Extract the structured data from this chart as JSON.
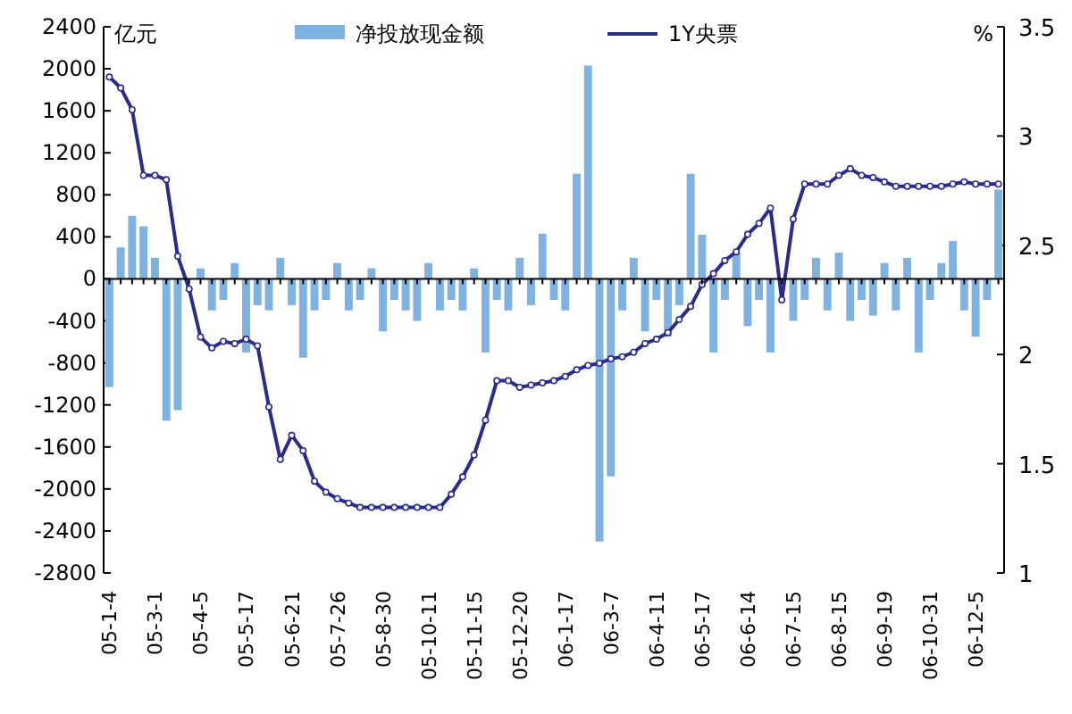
{
  "chart_data": {
    "type": "bar",
    "ylabel": "亿元",
    "y2label": "%",
    "categories": [
      "05-1-4",
      null,
      null,
      null,
      "05-3-1",
      null,
      null,
      null,
      "05-4-5",
      null,
      null,
      null,
      "05-5-17",
      null,
      null,
      null,
      "05-6-21",
      null,
      null,
      null,
      "05-7-26",
      null,
      null,
      null,
      "05-8-30",
      null,
      null,
      null,
      "05-10-11",
      null,
      null,
      null,
      "05-11-15",
      null,
      null,
      null,
      "05-12-20",
      null,
      null,
      null,
      "06-1-17",
      null,
      null,
      null,
      "06-3-7",
      null,
      null,
      null,
      "06-4-11",
      null,
      null,
      null,
      "06-5-17",
      null,
      null,
      null,
      "06-6-14",
      null,
      null,
      null,
      "06-7-15",
      null,
      null,
      null,
      "06-8-15",
      null,
      null,
      null,
      "06-9-19",
      null,
      null,
      null,
      "06-10-31",
      null,
      null,
      null,
      "06-12-5",
      null,
      null
    ],
    "series": [
      {
        "name": "净投放现金额",
        "color": "#7fb2e0",
        "values": [
          -1030,
          300,
          600,
          500,
          200,
          -1350,
          -1250,
          null,
          100,
          -300,
          -200,
          150,
          -700,
          -250,
          -300,
          200,
          -250,
          -750,
          -300,
          -200,
          150,
          -300,
          -200,
          100,
          -500,
          -200,
          -300,
          -400,
          150,
          -300,
          -200,
          -300,
          100,
          -700,
          -200,
          -300,
          200,
          -250,
          430,
          -200,
          -300,
          1000,
          2030,
          -2500,
          -1880,
          -300,
          200,
          -500,
          -200,
          -550,
          -250,
          1000,
          420,
          -700,
          -200,
          250,
          -450,
          -200,
          -700,
          null,
          -400,
          -200,
          200,
          -300,
          250,
          -400,
          -200,
          -350,
          150,
          -300,
          200,
          -700,
          -200,
          150,
          360,
          -300,
          -550,
          -200,
          850
        ]
      },
      {
        "name": "1Y央票",
        "type": "line",
        "axis": "y2",
        "color": "#2b2b8c",
        "marker": "circle",
        "values": [
          3.27,
          3.22,
          3.12,
          2.82,
          2.82,
          2.8,
          2.45,
          2.3,
          2.08,
          2.03,
          2.06,
          2.05,
          2.07,
          2.04,
          1.76,
          1.52,
          1.63,
          1.56,
          1.42,
          1.37,
          1.34,
          1.32,
          1.3,
          1.3,
          1.3,
          1.3,
          1.3,
          1.3,
          1.3,
          1.3,
          1.36,
          1.44,
          1.54,
          1.7,
          1.88,
          1.88,
          1.85,
          1.86,
          1.87,
          1.88,
          1.9,
          1.93,
          1.95,
          1.96,
          1.98,
          1.99,
          2.01,
          2.05,
          2.07,
          2.1,
          2.16,
          2.22,
          2.32,
          2.37,
          2.43,
          2.47,
          2.55,
          2.6,
          2.67,
          2.25,
          2.62,
          2.78,
          2.78,
          2.78,
          2.82,
          2.85,
          2.82,
          2.81,
          2.79,
          2.77,
          2.77,
          2.77,
          2.77,
          2.77,
          2.78,
          2.79,
          2.78,
          2.78,
          2.78
        ]
      }
    ],
    "ylim": [
      -2800,
      2400
    ],
    "yticks": [
      -2800,
      -2400,
      -2000,
      -1600,
      -1200,
      -800,
      -400,
      0,
      400,
      800,
      1200,
      1600,
      2000,
      2400
    ],
    "y2lim": [
      1,
      3.5
    ],
    "y2ticks": [
      1,
      1.5,
      2,
      2.5,
      3,
      3.5
    ],
    "legend": "top"
  }
}
